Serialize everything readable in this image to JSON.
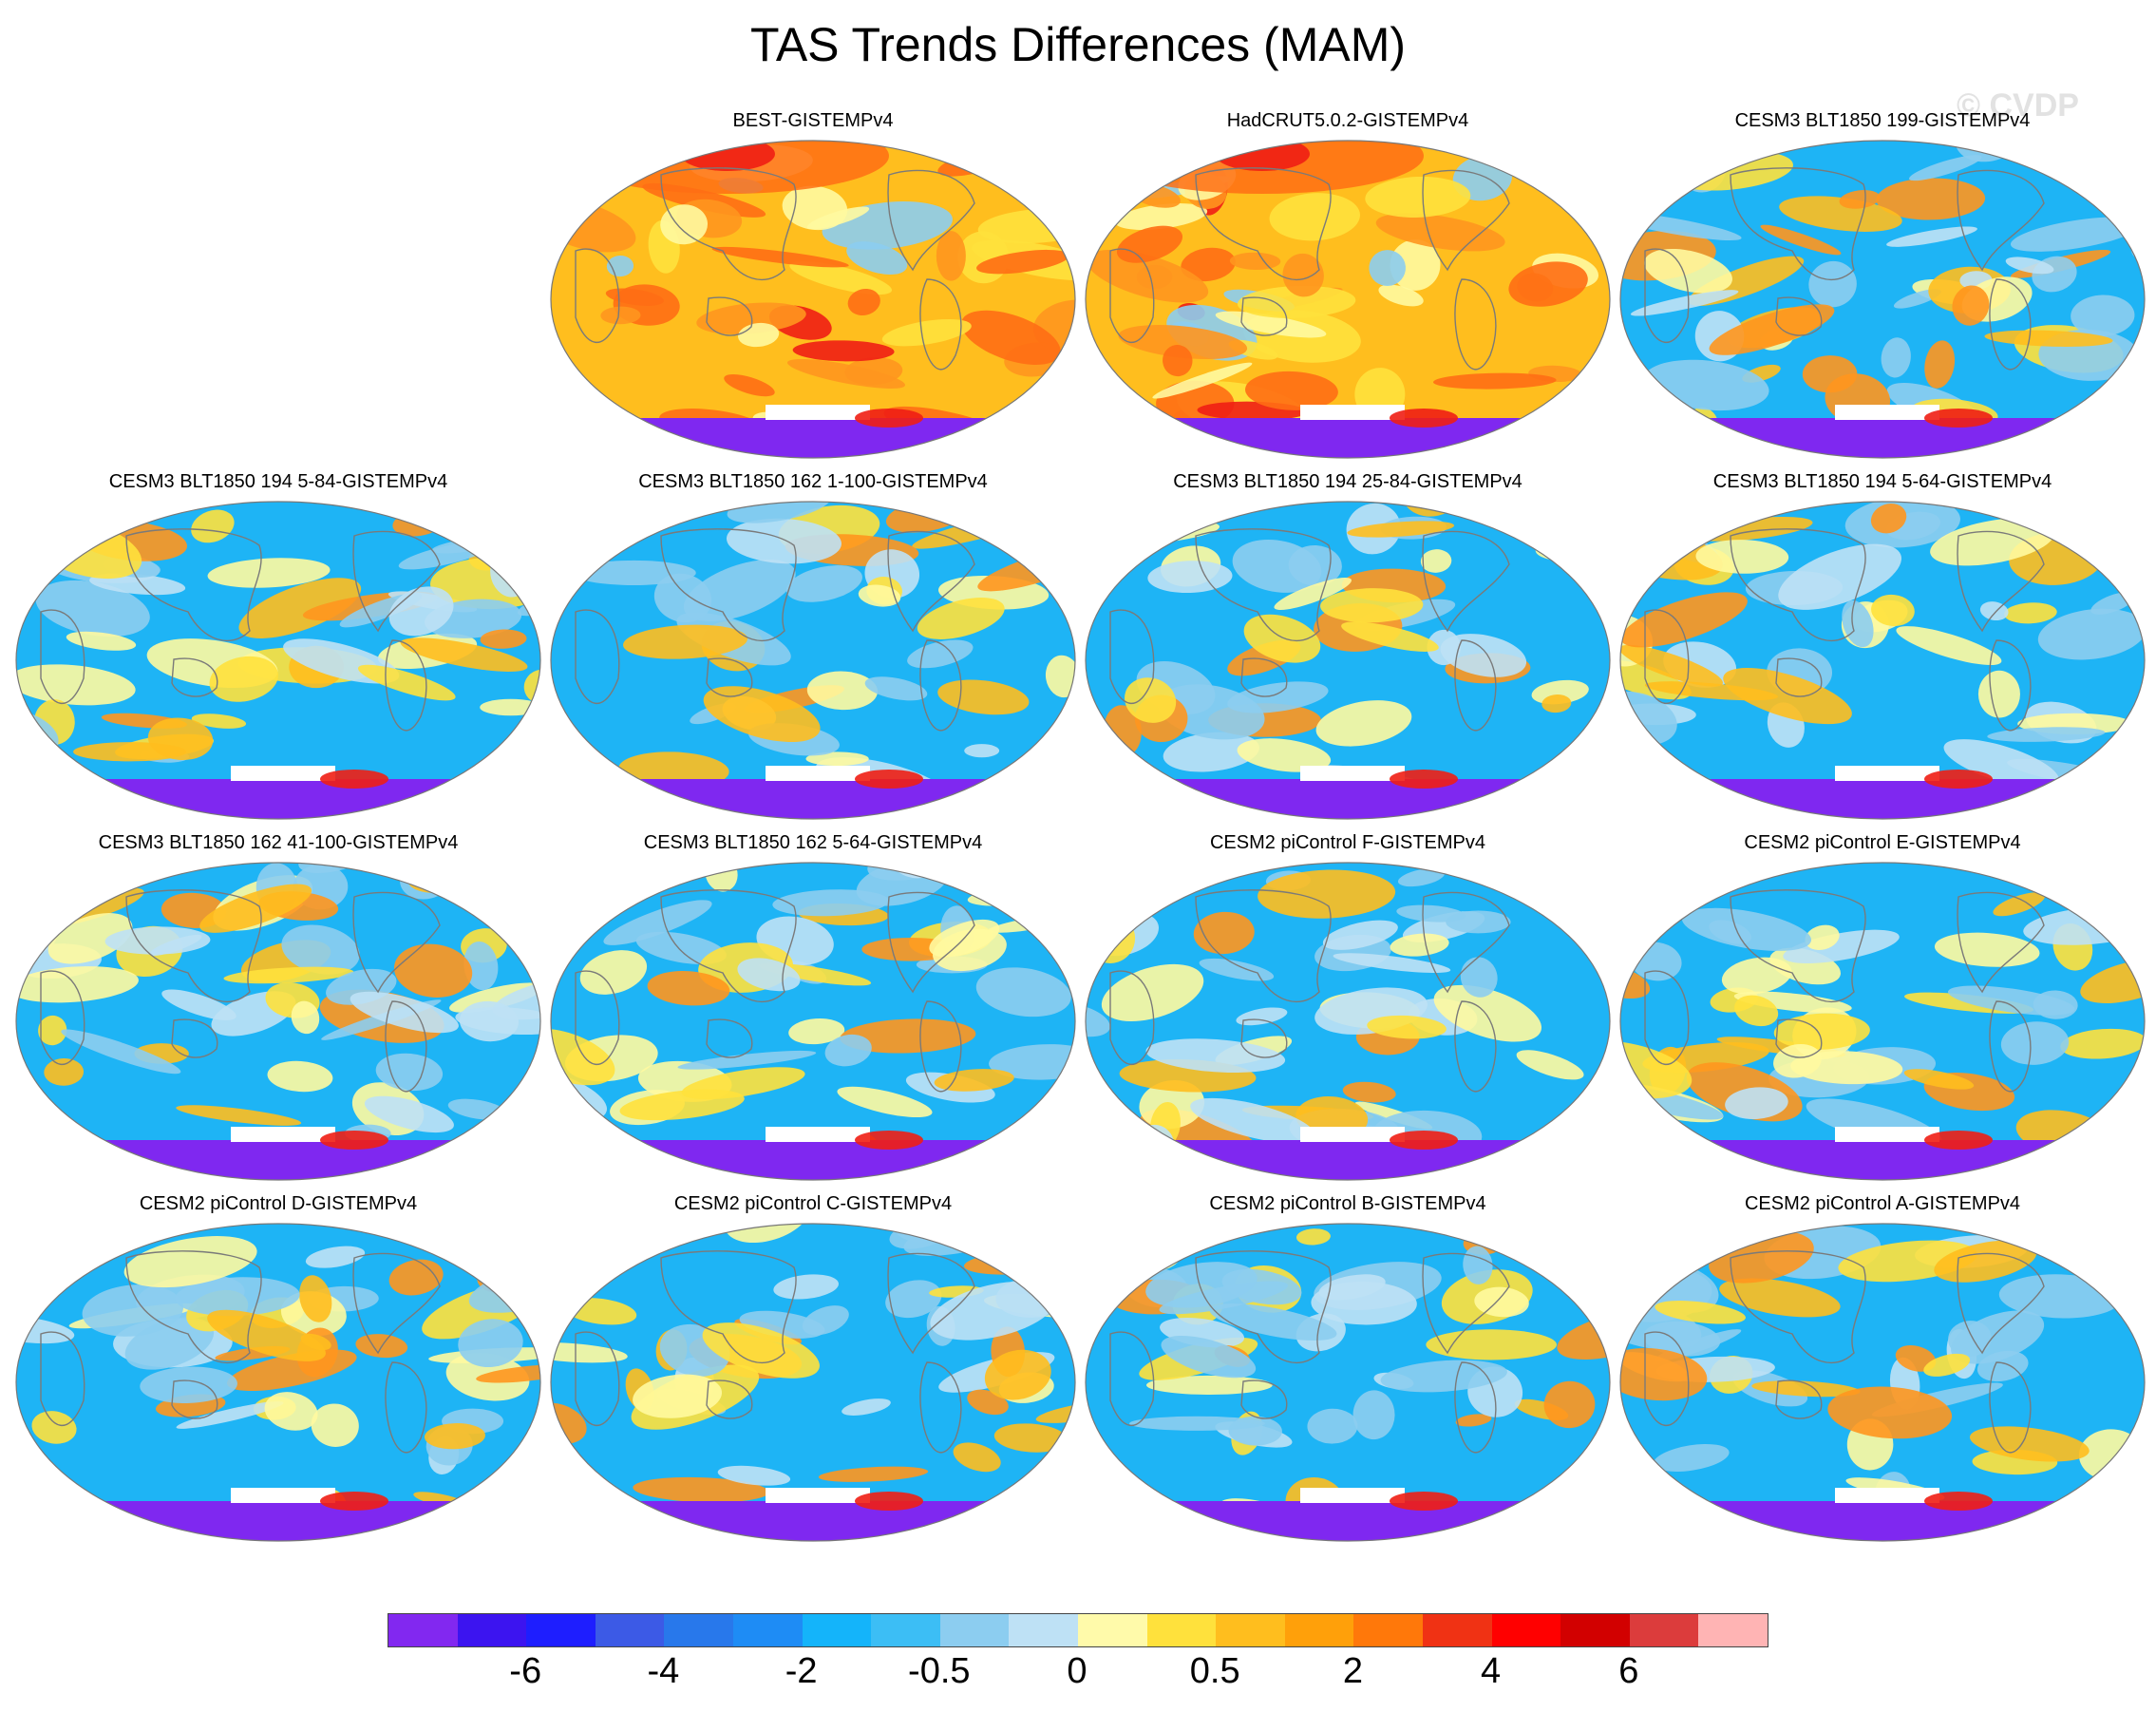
{
  "figure": {
    "title": "TAS Trends Differences (MAM)",
    "watermark": "© CVDP"
  },
  "palette": {
    "ocean_blue": "#1EB4F5",
    "light_blue": "#8CCDF0",
    "pale_blue": "#BEE1F5",
    "pale_yellow": "#FFF9A0",
    "yellow": "#FFE13C",
    "amber": "#FFBE1E",
    "orange": "#FF961E",
    "dark_orange": "#FF6E14",
    "red": "#F01E14",
    "antarctica_purple": "#7F28F0",
    "coast_gray": "#7a7a7a",
    "missing_white": "#ffffff"
  },
  "panels": [
    {
      "title": "BEST-GISTEMPv4",
      "base": "warm"
    },
    {
      "title": "HadCRUT5.0.2-GISTEMPv4",
      "base": "warm"
    },
    {
      "title": "CESM3 BLT1850 199-GISTEMPv4",
      "base": "cool"
    },
    {
      "title": "CESM3 BLT1850 194 5-84-GISTEMPv4",
      "base": "cool"
    },
    {
      "title": "CESM3 BLT1850 162 1-100-GISTEMPv4",
      "base": "cool"
    },
    {
      "title": "CESM3 BLT1850 194 25-84-GISTEMPv4",
      "base": "cool"
    },
    {
      "title": "CESM3 BLT1850 194 5-64-GISTEMPv4",
      "base": "cool"
    },
    {
      "title": "CESM3 BLT1850 162 41-100-GISTEMPv4",
      "base": "cool"
    },
    {
      "title": "CESM3 BLT1850 162 5-64-GISTEMPv4",
      "base": "cool"
    },
    {
      "title": "CESM2 piControl F-GISTEMPv4",
      "base": "cool"
    },
    {
      "title": "CESM2 piControl E-GISTEMPv4",
      "base": "cool"
    },
    {
      "title": "CESM2 piControl D-GISTEMPv4",
      "base": "cool"
    },
    {
      "title": "CESM2 piControl C-GISTEMPv4",
      "base": "cool"
    },
    {
      "title": "CESM2 piControl B-GISTEMPv4",
      "base": "cool"
    },
    {
      "title": "CESM2 piControl A-GISTEMPv4",
      "base": "cool"
    }
  ],
  "colorbar": {
    "colors": [
      "#8228F0",
      "#3C14F0",
      "#1E1EFF",
      "#3C5AE6",
      "#2878EB",
      "#1E8CF5",
      "#14B4FA",
      "#3CBEF5",
      "#8CCDF0",
      "#BEE1F5",
      "#FFFAAA",
      "#FFE13C",
      "#FFBE1E",
      "#FFA00A",
      "#FF780A",
      "#F03214",
      "#FF0000",
      "#D20000",
      "#DC3C3C",
      "#FFB4B4"
    ],
    "labels": [
      "-6",
      "-4",
      "-2",
      "-0.5",
      "0",
      "0.5",
      "2",
      "4",
      "6"
    ]
  }
}
